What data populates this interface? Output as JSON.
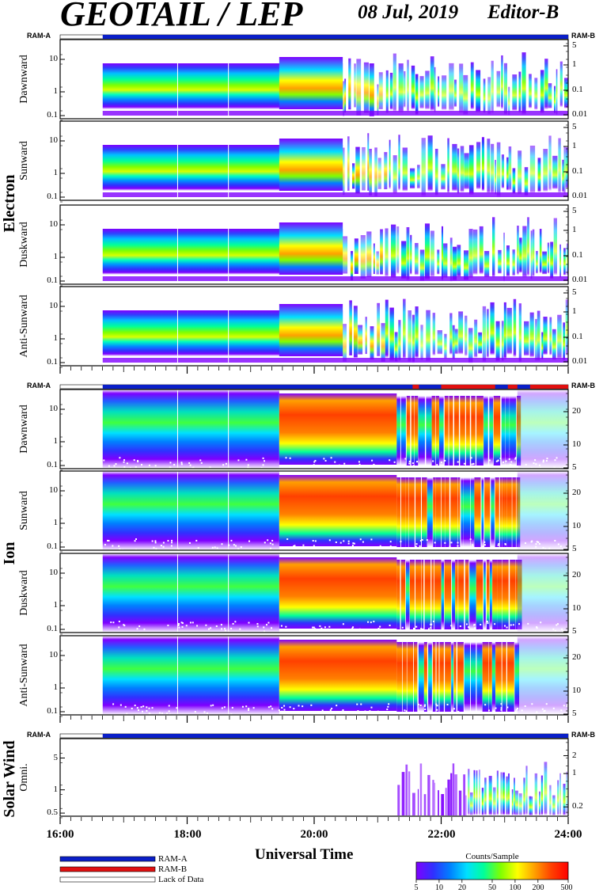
{
  "header": {
    "title": "GEOTAIL / LEP",
    "date": "08 Jul, 2019",
    "editor": "Editor-B"
  },
  "colors": {
    "ram_a": "#0a1fc8",
    "ram_b": "#e01010",
    "colorbar": [
      "#7f00ff",
      "#3030ff",
      "#0080ff",
      "#00e0ff",
      "#00ff9a",
      "#80ff00",
      "#ffff00",
      "#ffa000",
      "#ff4000",
      "#ff0000"
    ]
  },
  "chart_data": {
    "type": "heatmap",
    "xlabel": "Universal Time",
    "x_ticks": [
      "16:00",
      "18:00",
      "20:00",
      "22:00",
      "24:00"
    ],
    "x_range_hours": [
      16,
      24
    ],
    "data_start_hours": 16.67,
    "groups": [
      {
        "name": "Electron",
        "ram_left": "RAM-A",
        "ram_right": "RAM-B",
        "ram_b_segments": [],
        "right_tick_labels": [
          "5",
          "1",
          "0.1",
          "0.01"
        ],
        "left_tick_labels": [
          "10",
          "1",
          "0.1"
        ],
        "panels": [
          "Dawnward",
          "Sunward",
          "Duskward",
          "Anti-Sunward"
        ]
      },
      {
        "name": "Ion",
        "ram_left": "RAM-A",
        "ram_right": "RAM-B",
        "ram_b_segments": [
          [
            21.55,
            21.65
          ],
          [
            22.0,
            22.85
          ],
          [
            23.05,
            23.2
          ],
          [
            23.4,
            24.0
          ]
        ],
        "right_tick_labels": [
          "20",
          "10",
          "5"
        ],
        "left_tick_labels": [
          "10",
          "1",
          "0.1"
        ],
        "panels": [
          "Dawnward",
          "Sunward",
          "Duskward",
          "Anti-Sunward"
        ]
      },
      {
        "name": "Solar Wind",
        "ram_left": "RAM-A",
        "ram_right": "RAM-B",
        "ram_b_segments": [],
        "right_tick_labels": [
          "2",
          "1",
          "0.2"
        ],
        "left_tick_labels": [
          "5",
          "1",
          "0.5"
        ],
        "panels": [
          "Omni."
        ]
      }
    ],
    "legend": [
      {
        "label": "RAM-A",
        "color": "#0a1fc8"
      },
      {
        "label": "RAM-B",
        "color": "#e01010"
      },
      {
        "label": "Lack of Data",
        "color": "#ffffff"
      }
    ],
    "colorbar": {
      "title": "Counts/Sample",
      "tick_labels": [
        "5",
        "10",
        "20",
        "50",
        "100",
        "200",
        "500"
      ],
      "tick_values": [
        5,
        10,
        20,
        50,
        100,
        200,
        500
      ],
      "range": [
        5,
        500
      ],
      "scale": "log"
    }
  }
}
